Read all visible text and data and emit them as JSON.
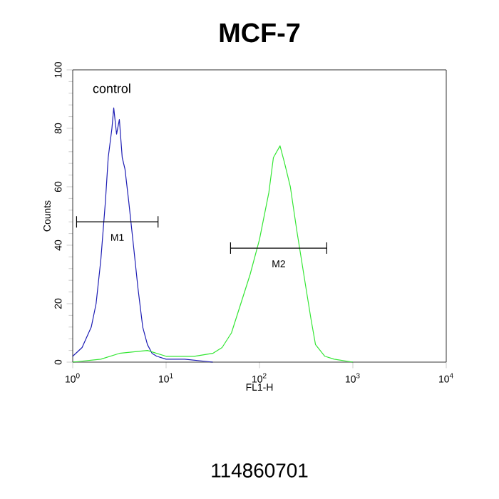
{
  "chart_data": {
    "type": "line",
    "title": "MCF-7",
    "xlabel": "FL1-H",
    "ylabel": "Counts",
    "log": "x",
    "xlim": [
      1,
      10000
    ],
    "ylim": [
      0,
      100
    ],
    "xticks": [
      {
        "value": 1,
        "label": "10$^{0}$"
      },
      {
        "value": 10,
        "label": "10$^{1}$"
      },
      {
        "value": 100,
        "label": "10$^{2}$"
      },
      {
        "value": 1000,
        "label": "10$^{3}$"
      },
      {
        "value": 10000,
        "label": "10$^{4}$"
      }
    ],
    "yticks": [
      0,
      20,
      40,
      60,
      80,
      100
    ],
    "grid": false,
    "series": [
      {
        "color": "#1c1cb4",
        "x": [
          1,
          1.26,
          1.58,
          1.78,
          2.0,
          2.24,
          2.4,
          2.63,
          2.75,
          2.95,
          3.16,
          3.39,
          3.63,
          3.98,
          4.47,
          5.01,
          5.62,
          6.31,
          7.08,
          7.94,
          10,
          15.8,
          31.6
        ],
        "values": [
          2,
          5,
          12,
          20,
          35,
          55,
          70,
          80,
          87,
          78,
          83,
          70,
          66,
          55,
          40,
          25,
          12,
          6,
          3,
          2,
          1,
          1,
          0
        ]
      },
      {
        "color": "#33e633",
        "x": [
          1,
          2,
          3.16,
          6.31,
          10,
          20,
          31.6,
          39.8,
          50.1,
          63.1,
          79.4,
          100,
          126,
          141,
          166,
          186,
          214,
          251,
          316,
          355,
          398,
          501,
          631,
          1000
        ],
        "values": [
          0,
          1,
          3,
          4,
          2,
          2,
          3,
          5,
          10,
          20,
          30,
          42,
          58,
          70,
          74,
          68,
          60,
          45,
          25,
          15,
          6,
          2,
          1,
          0
        ]
      },
      {
        "name": "M1",
        "type": "line",
        "color": "#000000",
        "x": [
          1.1,
          8.2
        ],
        "values": [
          48,
          48
        ]
      },
      {
        "name": "M2",
        "type": "line",
        "color": "#000000",
        "x": [
          49,
          525
        ],
        "values": [
          39,
          39
        ]
      }
    ],
    "annotations": [
      "control",
      "114860701"
    ]
  }
}
